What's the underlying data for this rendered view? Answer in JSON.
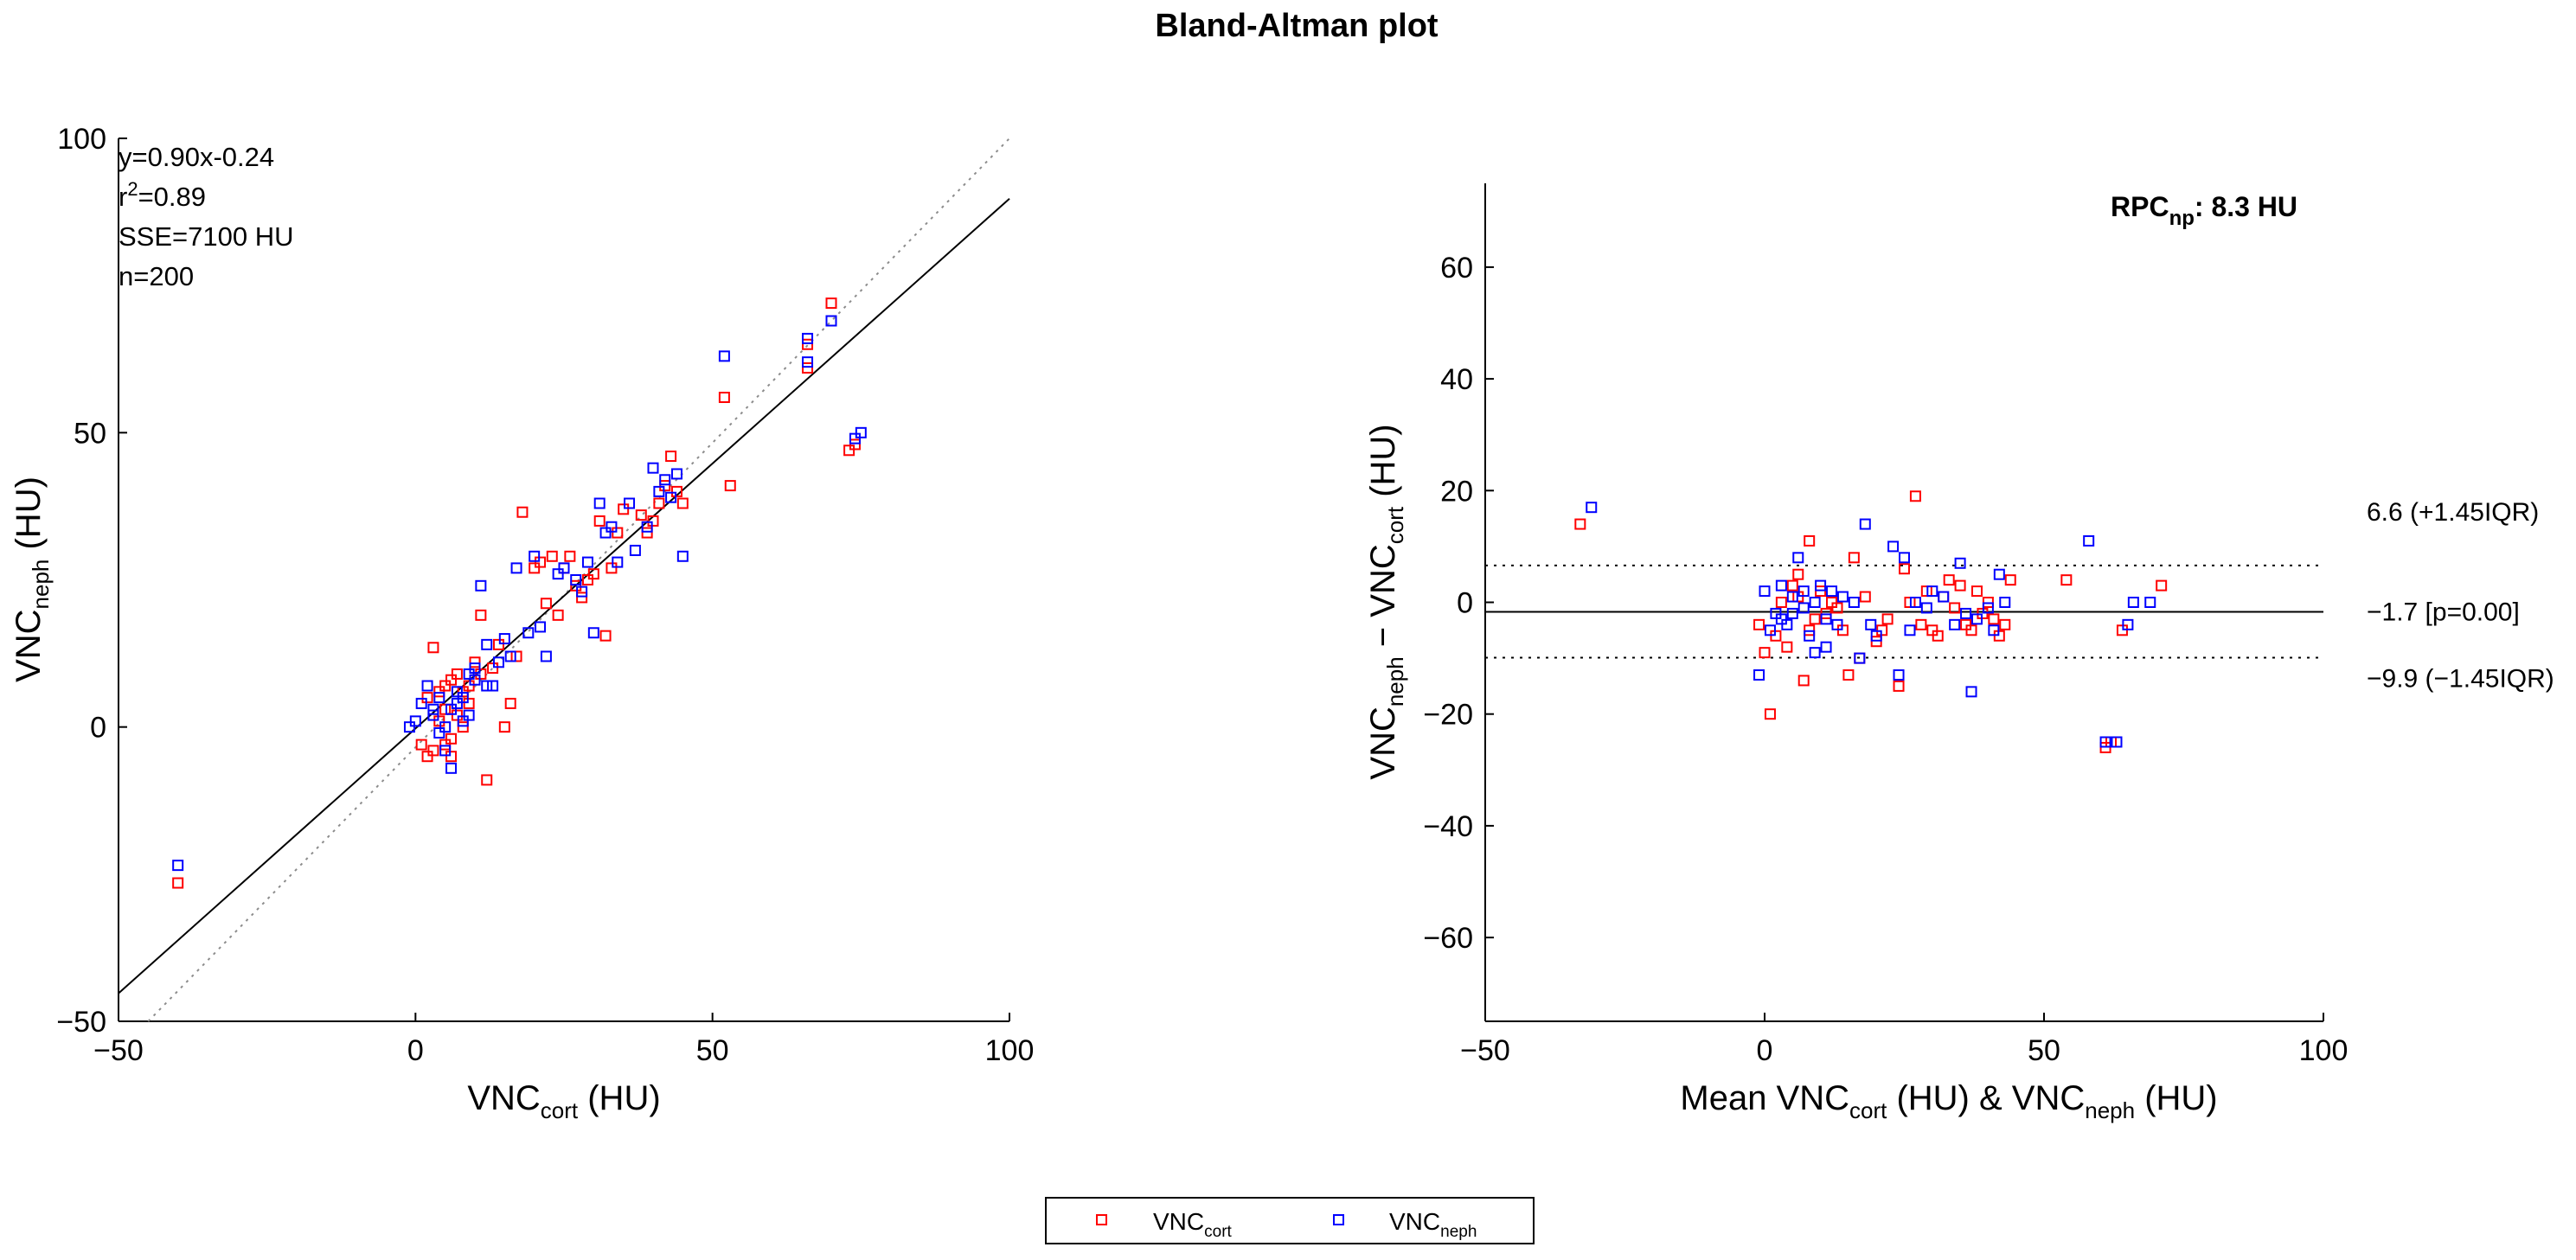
{
  "title": "Bland-Altman plot",
  "colors": {
    "cort": "#ff0000",
    "neph": "#0000ff",
    "axis": "#000000",
    "identity": "#8c8c8c"
  },
  "chart_data": [
    {
      "type": "scatter",
      "name": "correlation",
      "xlabel": {
        "base": "VNC",
        "sub": "cort",
        "suffix": " (HU)"
      },
      "ylabel": {
        "base": "VNC",
        "sub": "neph",
        "suffix": " (HU)"
      },
      "xlim": [
        -50,
        100
      ],
      "ylim": [
        -50,
        100
      ],
      "xticks": [
        -50,
        0,
        50,
        100
      ],
      "yticks": [
        -50,
        0,
        50,
        100
      ],
      "stats": {
        "fit": "y=0.90x-0.24",
        "r2_base": "r",
        "r2_exp": "2",
        "r2_value": "=0.89",
        "sse": "SSE=7100 HU",
        "n": "n=200"
      },
      "fit_line": {
        "slope": 0.9,
        "intercept": -0.24
      },
      "identity_line": true,
      "series": [
        {
          "name": "VNC_cort",
          "color": "#ff0000",
          "points": [
            [
              -40,
              -26.5
            ],
            [
              1,
              -3
            ],
            [
              2,
              -5
            ],
            [
              3,
              -4
            ],
            [
              4,
              1
            ],
            [
              5,
              3
            ],
            [
              6,
              -5
            ],
            [
              7,
              2
            ],
            [
              8,
              0
            ],
            [
              9,
              4
            ],
            [
              2,
              5
            ],
            [
              3,
              13.5
            ],
            [
              4,
              6
            ],
            [
              5,
              7
            ],
            [
              6,
              -2
            ],
            [
              7,
              9
            ],
            [
              8,
              6
            ],
            [
              10,
              11
            ],
            [
              11,
              19
            ],
            [
              12,
              -9
            ],
            [
              13,
              10
            ],
            [
              14,
              14
            ],
            [
              15,
              0
            ],
            [
              16,
              4
            ],
            [
              17,
              12
            ],
            [
              18,
              36.5
            ],
            [
              20,
              27
            ],
            [
              21,
              28
            ],
            [
              22,
              21
            ],
            [
              23,
              29
            ],
            [
              24,
              19
            ],
            [
              25,
              27
            ],
            [
              26,
              29
            ],
            [
              27,
              24
            ],
            [
              28,
              22
            ],
            [
              29,
              25
            ],
            [
              30,
              26
            ],
            [
              31,
              35
            ],
            [
              32,
              15.5
            ],
            [
              33,
              27
            ],
            [
              34,
              33
            ],
            [
              35,
              37
            ],
            [
              38,
              36
            ],
            [
              39,
              33
            ],
            [
              40,
              35
            ],
            [
              41,
              38
            ],
            [
              42,
              41
            ],
            [
              43,
              46
            ],
            [
              44,
              40
            ],
            [
              45,
              38
            ],
            [
              52,
              56
            ],
            [
              53,
              41
            ],
            [
              66,
              65
            ],
            [
              66,
              61
            ],
            [
              70,
              72
            ],
            [
              73,
              47
            ],
            [
              74,
              48
            ],
            [
              5,
              -3
            ],
            [
              6,
              8
            ],
            [
              9,
              7
            ],
            [
              11,
              9
            ]
          ]
        },
        {
          "name": "VNC_neph",
          "color": "#0000ff",
          "points": [
            [
              -40,
              -23.5
            ],
            [
              -1,
              0
            ],
            [
              0,
              1
            ],
            [
              1,
              4
            ],
            [
              2,
              7
            ],
            [
              3,
              3
            ],
            [
              4,
              -1
            ],
            [
              5,
              -4
            ],
            [
              6,
              -7
            ],
            [
              7,
              6
            ],
            [
              8,
              1
            ],
            [
              9,
              9
            ],
            [
              10,
              8
            ],
            [
              11,
              24
            ],
            [
              12,
              14
            ],
            [
              13,
              7
            ],
            [
              14,
              11
            ],
            [
              15,
              15
            ],
            [
              16,
              12
            ],
            [
              17,
              27
            ],
            [
              19,
              16
            ],
            [
              20,
              29
            ],
            [
              21,
              17
            ],
            [
              22,
              12
            ],
            [
              24,
              26
            ],
            [
              25,
              27
            ],
            [
              27,
              25
            ],
            [
              28,
              23
            ],
            [
              29,
              28
            ],
            [
              30,
              16
            ],
            [
              31,
              38
            ],
            [
              32,
              33
            ],
            [
              33,
              34
            ],
            [
              34,
              28
            ],
            [
              36,
              38
            ],
            [
              37,
              30
            ],
            [
              39,
              34
            ],
            [
              40,
              44
            ],
            [
              41,
              40
            ],
            [
              42,
              42
            ],
            [
              43,
              39
            ],
            [
              44,
              43
            ],
            [
              45,
              29
            ],
            [
              52,
              63
            ],
            [
              66,
              66
            ],
            [
              66,
              62
            ],
            [
              70,
              69
            ],
            [
              74,
              49
            ],
            [
              75,
              50
            ],
            [
              3,
              2
            ],
            [
              4,
              5
            ],
            [
              5,
              0
            ],
            [
              6,
              3
            ],
            [
              7,
              4
            ],
            [
              8,
              5
            ],
            [
              9,
              2
            ],
            [
              10,
              10
            ],
            [
              12,
              7
            ]
          ]
        }
      ]
    },
    {
      "type": "scatter",
      "name": "bland-altman",
      "xlabel": {
        "pre": "Mean VNC",
        "sub1": "cort",
        "mid": " (HU) & VNC",
        "sub2": "neph",
        "post": " (HU)"
      },
      "ylabel": {
        "base": "VNC",
        "sub1": "neph",
        "mid": " − VNC",
        "sub2": "cort",
        "post": " (HU)"
      },
      "xlim": [
        -50,
        100
      ],
      "ylim": [
        -75,
        75
      ],
      "xticks": [
        -50,
        0,
        50,
        100
      ],
      "yticks": [
        -60,
        -40,
        -20,
        0,
        20,
        40,
        60
      ],
      "rpc": {
        "base": "RPC",
        "sub": "np",
        "value": ": 8.3 HU"
      },
      "reference_lines": [
        {
          "value": 6.6,
          "style": "dotted",
          "label": "6.6 (+1.45IQR)"
        },
        {
          "value": -1.7,
          "style": "solid",
          "label": "−1.7 [p=0.00]"
        },
        {
          "value": -9.9,
          "style": "dotted",
          "label": "−9.9 (−1.45IQR)"
        }
      ],
      "series": [
        {
          "name": "VNC_cort",
          "color": "#ff0000",
          "points": [
            [
              -33,
              14
            ],
            [
              -1,
              -4
            ],
            [
              0,
              -9
            ],
            [
              1,
              -20
            ],
            [
              2,
              -6
            ],
            [
              3,
              0
            ],
            [
              4,
              -8
            ],
            [
              5,
              3
            ],
            [
              6,
              5
            ],
            [
              7,
              -14
            ],
            [
              8,
              11
            ],
            [
              9,
              -3
            ],
            [
              10,
              2
            ],
            [
              11,
              -2
            ],
            [
              12,
              0
            ],
            [
              14,
              -5
            ],
            [
              15,
              -13
            ],
            [
              17,
              -10
            ],
            [
              18,
              1
            ],
            [
              20,
              -7
            ],
            [
              22,
              -3
            ],
            [
              24,
              -15
            ],
            [
              25,
              6
            ],
            [
              26,
              0
            ],
            [
              27,
              19
            ],
            [
              28,
              -4
            ],
            [
              29,
              2
            ],
            [
              30,
              -5
            ],
            [
              31,
              -6
            ],
            [
              33,
              4
            ],
            [
              34,
              -1
            ],
            [
              35,
              3
            ],
            [
              36,
              -4
            ],
            [
              37,
              -5
            ],
            [
              38,
              2
            ],
            [
              40,
              0
            ],
            [
              41,
              -3
            ],
            [
              42,
              -6
            ],
            [
              43,
              -4
            ],
            [
              44,
              4
            ],
            [
              54,
              4
            ],
            [
              61,
              -26
            ],
            [
              62,
              -25
            ],
            [
              64,
              -5
            ],
            [
              71,
              3
            ],
            [
              6,
              1
            ],
            [
              8,
              -5
            ],
            [
              13,
              -1
            ],
            [
              16,
              8
            ],
            [
              21,
              -5
            ],
            [
              32,
              1
            ],
            [
              39,
              -2
            ]
          ]
        },
        {
          "name": "VNC_neph",
          "color": "#0000ff",
          "points": [
            [
              -31,
              17
            ],
            [
              -1,
              -13
            ],
            [
              0,
              2
            ],
            [
              1,
              -5
            ],
            [
              2,
              -2
            ],
            [
              3,
              3
            ],
            [
              4,
              -4
            ],
            [
              5,
              1
            ],
            [
              6,
              8
            ],
            [
              7,
              -1
            ],
            [
              8,
              -6
            ],
            [
              9,
              -9
            ],
            [
              10,
              3
            ],
            [
              11,
              -3
            ],
            [
              12,
              2
            ],
            [
              13,
              -4
            ],
            [
              16,
              0
            ],
            [
              17,
              -10
            ],
            [
              18,
              14
            ],
            [
              20,
              -6
            ],
            [
              23,
              10
            ],
            [
              24,
              -13
            ],
            [
              25,
              8
            ],
            [
              26,
              -5
            ],
            [
              27,
              0
            ],
            [
              29,
              -1
            ],
            [
              30,
              2
            ],
            [
              32,
              1
            ],
            [
              34,
              -4
            ],
            [
              35,
              7
            ],
            [
              36,
              -2
            ],
            [
              37,
              -16
            ],
            [
              38,
              -3
            ],
            [
              40,
              -1
            ],
            [
              41,
              -5
            ],
            [
              42,
              5
            ],
            [
              43,
              0
            ],
            [
              58,
              11
            ],
            [
              61,
              -25
            ],
            [
              63,
              -25
            ],
            [
              65,
              -4
            ],
            [
              66,
              0
            ],
            [
              69,
              0
            ],
            [
              3,
              -3
            ],
            [
              5,
              -2
            ],
            [
              7,
              2
            ],
            [
              9,
              0
            ],
            [
              11,
              -8
            ],
            [
              14,
              1
            ],
            [
              19,
              -4
            ]
          ]
        }
      ]
    }
  ],
  "legend": {
    "items": [
      {
        "base": "VNC",
        "sub": "cort",
        "color": "#ff0000"
      },
      {
        "base": "VNC",
        "sub": "neph",
        "color": "#0000ff"
      }
    ]
  }
}
